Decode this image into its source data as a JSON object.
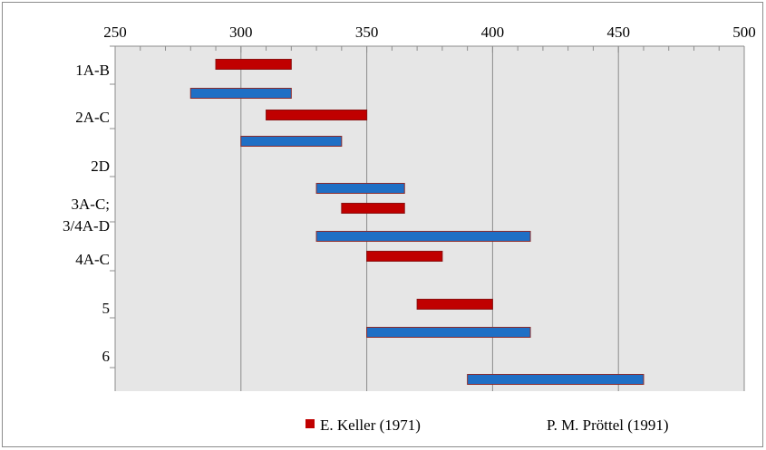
{
  "chart_data": {
    "type": "bar",
    "orientation": "horizontal-range",
    "title": "",
    "xlabel": "",
    "ylabel": "",
    "x_axis_position": "top",
    "xlim": [
      250,
      500
    ],
    "x_ticks": [
      250,
      300,
      350,
      400,
      450,
      500
    ],
    "grid": "vertical major gridlines",
    "plot_background": "#e6e6e6",
    "category_labels": [
      "1A-B",
      "2A-C",
      "2D",
      "3A-C;",
      "3/4A-D",
      "4A-C",
      "5",
      "6"
    ],
    "series": [
      {
        "name": "E. Keller (1971)",
        "color": "#c00000",
        "ranges": [
          {
            "label": "1A-B",
            "start": 290,
            "end": 320
          },
          {
            "label": "2A-C",
            "start": 310,
            "end": 350
          },
          {
            "label": "3A-C; 3/4A-D",
            "start": 340,
            "end": 365
          },
          {
            "label": "4A-C",
            "start": 350,
            "end": 380
          },
          {
            "label": "5",
            "start": 370,
            "end": 400
          }
        ]
      },
      {
        "name": "P. M. Pröttel (1991)",
        "color": "#1f6fc5",
        "ranges": [
          {
            "label": "1A-B",
            "start": 280,
            "end": 320
          },
          {
            "label": "2A-C",
            "start": 300,
            "end": 340
          },
          {
            "label": "2D",
            "start": 330,
            "end": 365
          },
          {
            "label": "3A-C; 3/4A-D",
            "start": 330,
            "end": 415
          },
          {
            "label": "5",
            "start": 350,
            "end": 415
          },
          {
            "label": "6",
            "start": 390,
            "end": 460
          }
        ]
      }
    ],
    "legend": {
      "placement": "bottom",
      "entries": [
        "E. Keller (1971)",
        "P. M. Pröttel (1991)"
      ]
    }
  }
}
